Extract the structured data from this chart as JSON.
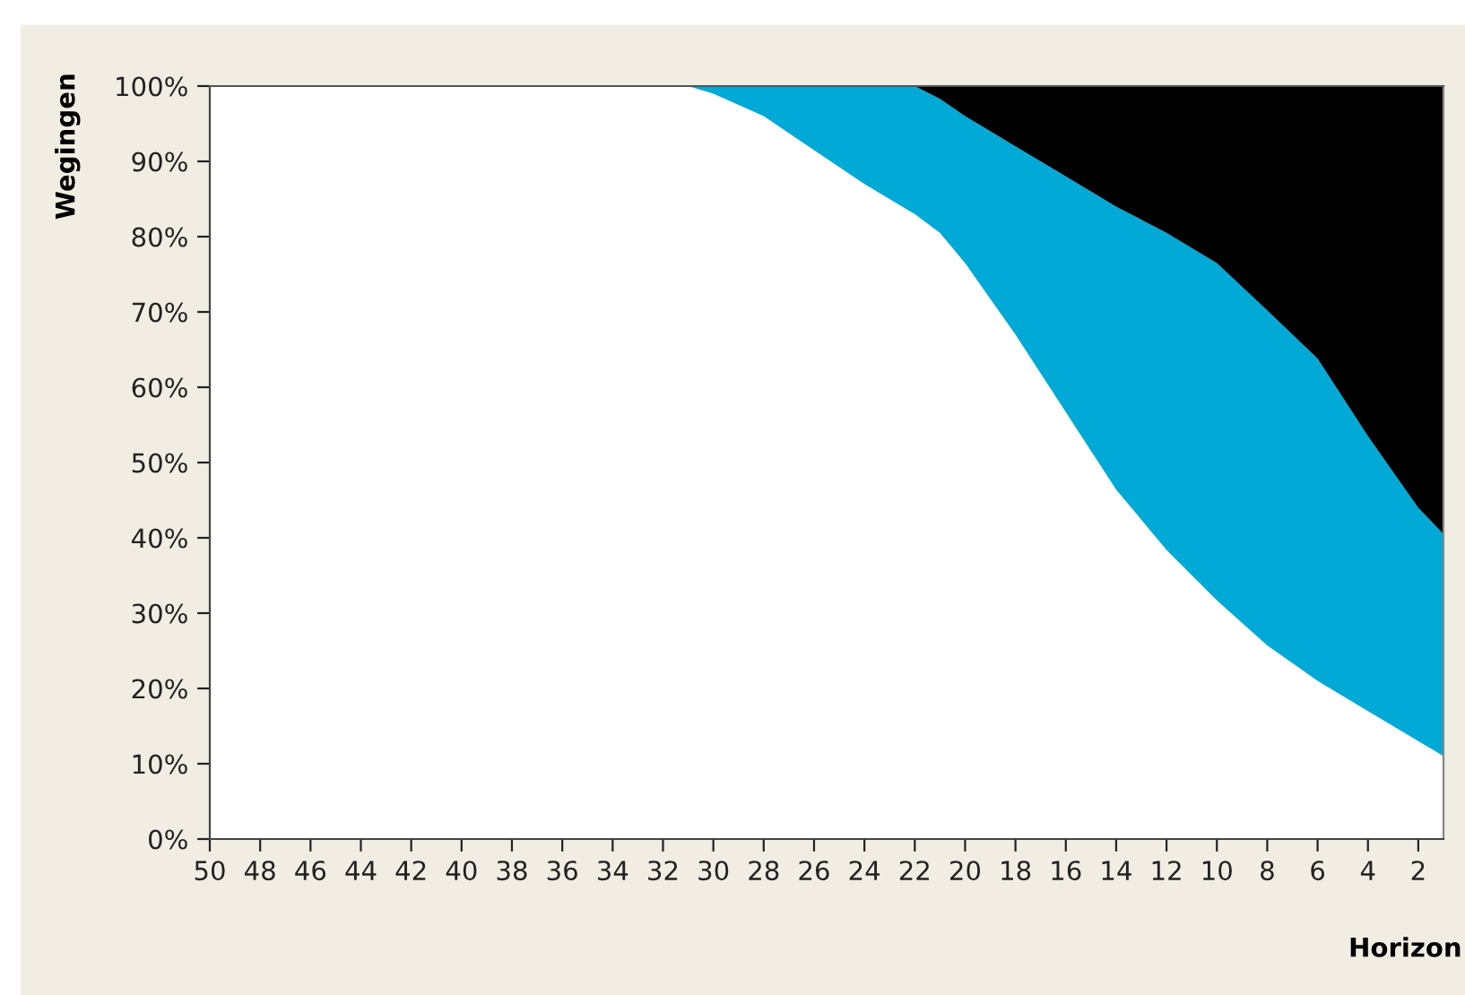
{
  "chart_data": {
    "type": "area",
    "stacked": true,
    "xlabel": "Horizon",
    "ylabel": "Wegingen",
    "x": [
      50,
      31,
      30,
      28,
      26,
      24,
      22,
      21,
      20,
      18,
      16,
      14,
      12,
      10,
      8,
      6,
      4,
      2,
      1
    ],
    "series": [
      {
        "color": "#ffffff",
        "values": [
          100,
          100,
          99,
          96,
          91.5,
          87,
          83,
          80.5,
          76.5,
          67,
          56.7,
          46.4,
          38.4,
          31.7,
          25.7,
          21,
          17,
          13,
          11
        ]
      },
      {
        "color": "#00a9d6",
        "values": [
          0,
          0,
          1,
          4,
          8.5,
          13,
          17,
          17.8,
          19.5,
          25,
          31.3,
          37.6,
          42.1,
          44.8,
          44.5,
          42.8,
          36.5,
          31,
          29.5
        ]
      },
      {
        "color": "#000000",
        "values": [
          0,
          0,
          0,
          0,
          0,
          0,
          0,
          1.7,
          4,
          8,
          12,
          16,
          19.5,
          23.5,
          29.8,
          36.2,
          46.5,
          56,
          59.5
        ]
      }
    ],
    "xlim": [
      50,
      1
    ],
    "xticks": [
      50,
      48,
      46,
      44,
      42,
      40,
      38,
      36,
      34,
      32,
      30,
      28,
      26,
      24,
      22,
      20,
      18,
      16,
      14,
      12,
      10,
      8,
      6,
      4,
      2
    ],
    "ylim": [
      0,
      100
    ],
    "yticks": [
      {
        "value": 0,
        "label": "0%"
      },
      {
        "value": 10,
        "label": "10%"
      },
      {
        "value": 20,
        "label": "20%"
      },
      {
        "value": 30,
        "label": "30%"
      },
      {
        "value": 40,
        "label": "40%"
      },
      {
        "value": 50,
        "label": "50%"
      },
      {
        "value": 60,
        "label": "60%"
      },
      {
        "value": 70,
        "label": "70%"
      },
      {
        "value": 80,
        "label": "80%"
      },
      {
        "value": 90,
        "label": "90%"
      },
      {
        "value": 100,
        "label": "100%"
      }
    ],
    "grid": false,
    "legend": false
  }
}
